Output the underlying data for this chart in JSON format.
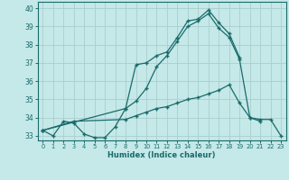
{
  "xlabel": "Humidex (Indice chaleur)",
  "background_color": "#c5e8e8",
  "line_color": "#1a6b6b",
  "grid_color": "#aacece",
  "xlim": [
    -0.5,
    23.5
  ],
  "ylim": [
    32.75,
    40.35
  ],
  "yticks": [
    33,
    34,
    35,
    36,
    37,
    38,
    39,
    40
  ],
  "xticks": [
    0,
    1,
    2,
    3,
    4,
    5,
    6,
    7,
    8,
    9,
    10,
    11,
    12,
    13,
    14,
    15,
    16,
    17,
    18,
    19,
    20,
    21,
    22,
    23
  ],
  "line1_y": [
    33.3,
    33.0,
    33.8,
    33.7,
    33.1,
    32.9,
    32.9,
    33.5,
    34.5,
    36.9,
    37.0,
    37.4,
    37.6,
    38.4,
    39.3,
    39.4,
    39.9,
    39.2,
    38.6,
    37.3,
    null,
    null,
    null,
    null
  ],
  "line2_y": [
    33.3,
    null,
    null,
    null,
    null,
    null,
    null,
    null,
    34.5,
    34.9,
    35.6,
    36.8,
    37.4,
    38.2,
    39.0,
    39.3,
    39.7,
    38.9,
    38.4,
    37.2,
    34.0,
    33.8,
    null,
    null
  ],
  "line3_y": [
    33.3,
    null,
    null,
    33.8,
    null,
    null,
    null,
    null,
    33.9,
    34.1,
    34.3,
    34.5,
    34.6,
    34.8,
    35.0,
    35.1,
    35.3,
    35.5,
    35.8,
    34.8,
    34.0,
    33.9,
    33.9,
    33.0
  ]
}
